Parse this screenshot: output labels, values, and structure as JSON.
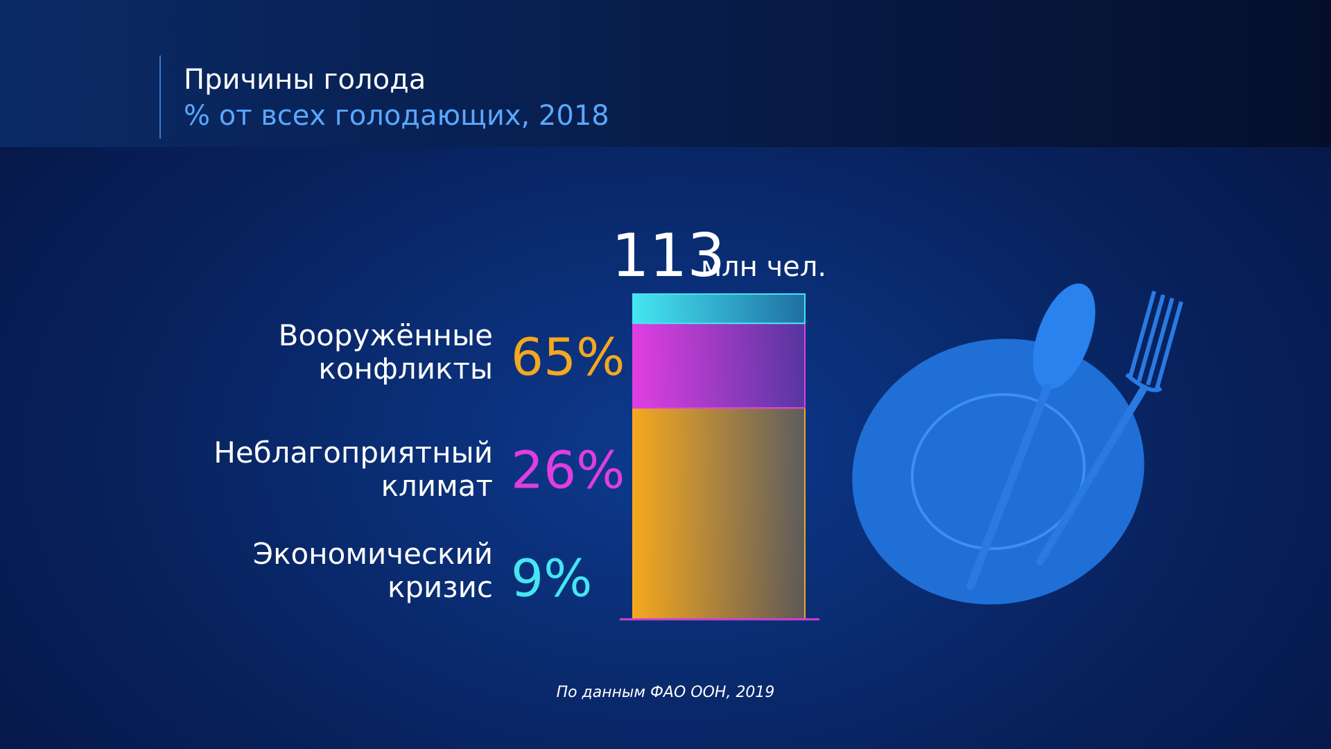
{
  "chart_data": {
    "type": "stacked-bar",
    "title": "Причины голода",
    "subtitle": "% от всех голодающих, 2018",
    "total": 113,
    "total_unit": "млн чел.",
    "ylim": [
      0,
      100
    ],
    "series": [
      {
        "name": "Вооружённые конфликты",
        "color": "#f5a81e",
        "values": [
          65
        ],
        "value_labels": [
          "65%"
        ]
      },
      {
        "name": "Неблагоприятный климат",
        "color": "#e03ee0",
        "values": [
          26
        ],
        "value_labels": [
          "26%"
        ]
      },
      {
        "name": "Экономический кризис",
        "color": "#45e6f2",
        "values": [
          9
        ],
        "value_labels": [
          "9%"
        ]
      }
    ],
    "source": "По данным ФАО ООН, 2019"
  }
}
